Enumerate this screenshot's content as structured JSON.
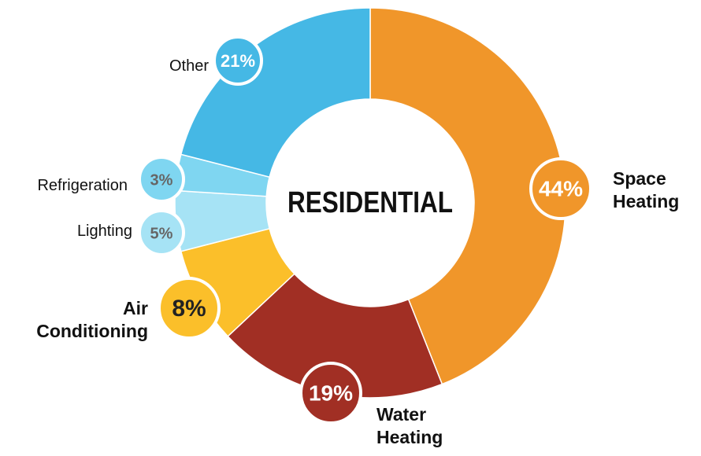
{
  "chart_data": {
    "type": "donut",
    "title": "RESIDENTIAL",
    "categories": [
      "Space Heating",
      "Water Heating",
      "Air Conditioning",
      "Lighting",
      "Refrigeration",
      "Other"
    ],
    "values": [
      44,
      19,
      8,
      5,
      3,
      21
    ],
    "value_labels": [
      "44%",
      "19%",
      "8%",
      "5%",
      "3%",
      "21%"
    ],
    "colors": [
      "#f0962a",
      "#a12f24",
      "#fbbf2a",
      "#a6e3f5",
      "#7fd6f1",
      "#45b8e5"
    ]
  }
}
